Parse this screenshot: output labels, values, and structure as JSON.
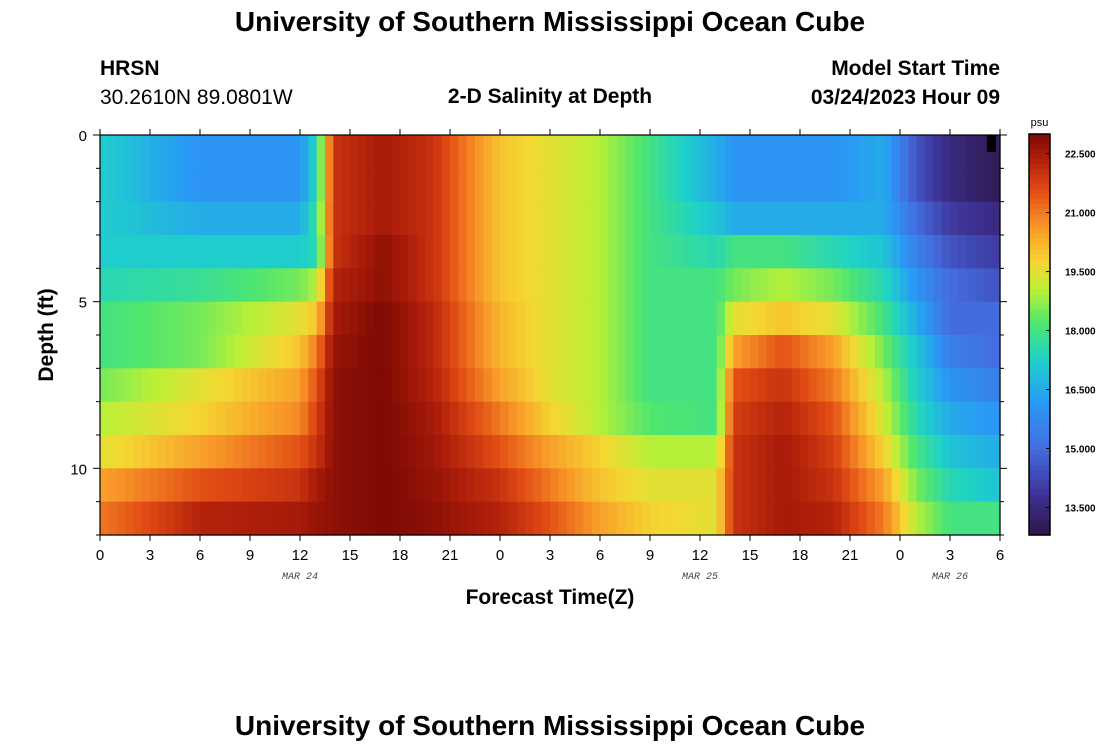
{
  "header": {
    "title": "University of Southern Mississippi Ocean Cube",
    "station": "HRSN",
    "location": "30.2610N  89.0801W",
    "subtitle": "2-D Salinity at Depth",
    "model_start_label": "Model Start Time",
    "model_start_value": "03/24/2023 Hour 09",
    "footer_title": "University of Southern Mississippi Ocean Cube"
  },
  "chart_data": {
    "type": "heatmap",
    "title": "2-D Salinity at Depth",
    "xlabel": "Forecast Time(Z)",
    "ylabel": "Depth (ft)",
    "x_range_hours": [
      0,
      54
    ],
    "y_range_ft": [
      0,
      12
    ],
    "x_tick_labels": [
      "0",
      "3",
      "6",
      "9",
      "12",
      "15",
      "18",
      "21",
      "0",
      "3",
      "6",
      "9",
      "12",
      "15",
      "18",
      "21",
      "0",
      "3",
      "6"
    ],
    "y_tick_values": [
      0,
      5,
      10
    ],
    "date_labels": [
      {
        "text": "MAR 24",
        "hour": 12
      },
      {
        "text": "MAR 25",
        "hour": 36
      },
      {
        "text": "MAR 26",
        "hour": 51
      }
    ],
    "colorbar": {
      "units": "psu",
      "min": 12.8,
      "max": 23.0,
      "tick_labels": [
        "22.500",
        "21.000",
        "19.500",
        "18.000",
        "16.500",
        "15.000",
        "13.500"
      ],
      "tick_values": [
        22.5,
        21.0,
        19.5,
        18.0,
        16.5,
        15.0,
        13.5
      ]
    },
    "depth_levels_ft": [
      0.5,
      1.5,
      2.5,
      3.5,
      4.5,
      5.5,
      6.5,
      7.5,
      8.5,
      9.5,
      10.5,
      11.5
    ],
    "time_keyframes_hours": [
      0,
      6,
      12,
      13,
      14,
      17,
      20,
      24,
      27,
      30,
      33,
      37,
      38,
      41,
      44,
      47,
      49,
      51,
      54
    ],
    "salinity_psu_by_depth": [
      [
        17.2,
        16.0,
        16.0,
        17.5,
        22.0,
        22.5,
        22.0,
        20.0,
        19.5,
        19.0,
        18.0,
        16.5,
        16.0,
        16.0,
        16.0,
        16.5,
        14.5,
        13.5,
        13.0
      ],
      [
        17.2,
        16.0,
        16.0,
        17.5,
        22.0,
        22.5,
        22.0,
        20.0,
        19.5,
        19.0,
        18.0,
        16.5,
        16.0,
        16.0,
        16.0,
        16.5,
        14.5,
        13.5,
        13.0
      ],
      [
        17.2,
        16.5,
        16.5,
        17.8,
        22.0,
        22.5,
        22.0,
        20.0,
        19.5,
        19.0,
        18.0,
        17.0,
        16.5,
        16.5,
        16.5,
        16.5,
        15.0,
        14.0,
        13.5
      ],
      [
        17.2,
        17.2,
        17.2,
        17.5,
        22.0,
        22.8,
        22.0,
        20.0,
        19.5,
        19.0,
        18.0,
        17.5,
        18.0,
        18.0,
        17.5,
        17.0,
        15.5,
        14.5,
        14.0
      ],
      [
        17.5,
        17.8,
        18.5,
        19.0,
        22.3,
        22.8,
        22.0,
        20.0,
        19.5,
        19.0,
        18.0,
        18.0,
        18.5,
        19.0,
        18.5,
        17.5,
        16.0,
        15.0,
        14.5
      ],
      [
        18.0,
        18.5,
        19.5,
        20.0,
        22.5,
        23.0,
        22.2,
        20.2,
        19.5,
        19.0,
        18.0,
        18.0,
        19.5,
        20.0,
        19.5,
        18.0,
        16.5,
        15.0,
        15.0
      ],
      [
        18.0,
        18.5,
        20.0,
        21.0,
        22.7,
        23.0,
        22.2,
        20.2,
        19.5,
        19.0,
        18.0,
        18.0,
        20.5,
        21.5,
        20.5,
        18.5,
        17.0,
        15.5,
        15.0
      ],
      [
        18.5,
        19.5,
        20.5,
        21.5,
        22.8,
        23.0,
        22.3,
        20.5,
        19.5,
        19.0,
        18.0,
        18.0,
        21.5,
        22.0,
        21.0,
        19.0,
        17.2,
        16.0,
        15.5
      ],
      [
        19.0,
        19.8,
        20.8,
        21.8,
        22.8,
        23.0,
        22.5,
        21.0,
        19.8,
        19.0,
        18.2,
        18.0,
        21.8,
        22.3,
        21.5,
        19.3,
        17.5,
        16.5,
        16.0
      ],
      [
        19.5,
        20.5,
        21.5,
        22.0,
        22.8,
        23.0,
        22.6,
        21.5,
        20.5,
        19.8,
        19.0,
        19.0,
        22.0,
        22.5,
        21.8,
        19.8,
        18.0,
        17.0,
        16.5
      ],
      [
        20.5,
        21.5,
        22.0,
        22.5,
        22.8,
        23.0,
        22.7,
        22.0,
        21.0,
        20.0,
        19.5,
        19.5,
        22.0,
        22.5,
        22.0,
        20.5,
        18.5,
        17.5,
        17.0
      ],
      [
        21.0,
        22.3,
        22.5,
        22.7,
        22.8,
        23.0,
        22.8,
        22.3,
        21.5,
        20.5,
        19.8,
        19.5,
        22.0,
        22.5,
        22.3,
        21.0,
        19.0,
        18.0,
        18.0
      ]
    ]
  }
}
